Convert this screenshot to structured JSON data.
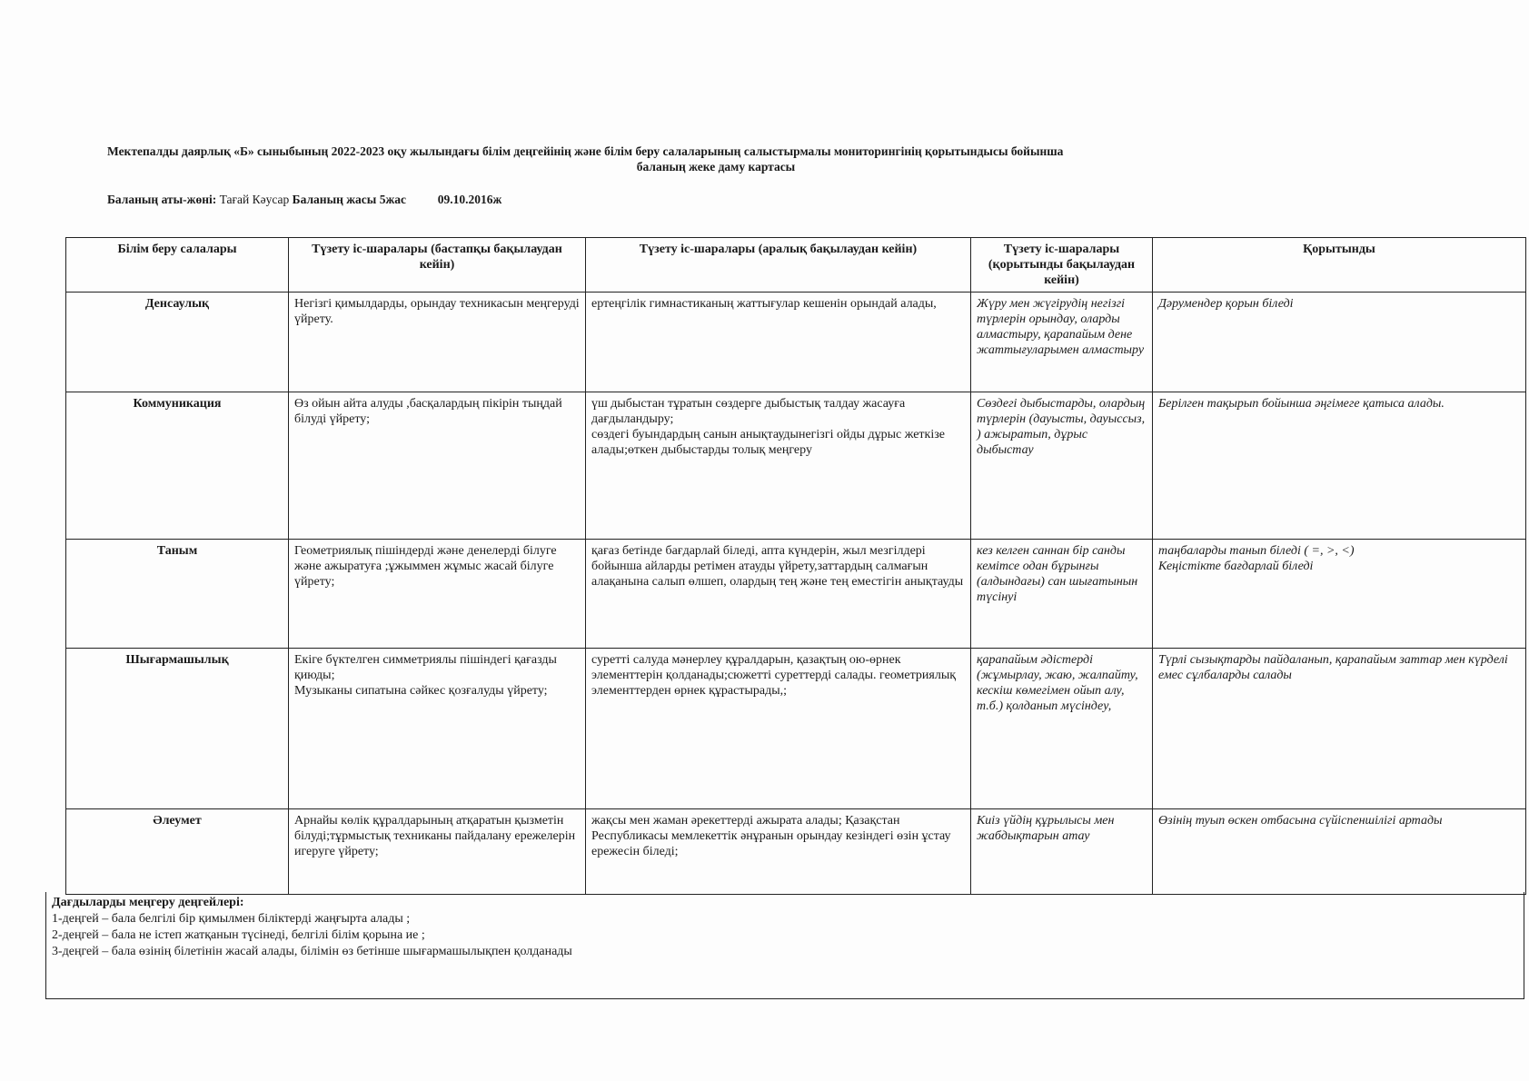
{
  "title": {
    "line1": "Мектепалды даярлық  «Б» сыныбының 2022-2023 оқу жылындағы білім деңгейінің  және білім беру салаларының салыстырмалы    мониторингінің қорытындысы бойынша",
    "line2": "баланың жеке даму картасы"
  },
  "child": {
    "name_label": "Баланың аты-жөні:",
    "name": "Тағай Кәусар",
    "age_label": "Баланың жасы",
    "age": "5жас",
    "birth_date": "09.10.2016ж"
  },
  "table": {
    "headers": [
      "Білім беру салалары",
      "Түзету іс-шаралары (бастапқы бақылаудан кейін)",
      "Түзету іс-шаралары (аралық бақылаудан кейін)",
      "Түзету іс-шаралары (қорытынды бақылаудан кейін)",
      "Қорытынды"
    ],
    "rows": [
      {
        "area": "Денсаулық",
        "initial": "Негізгі қимылдарды, орындау техникасын меңгеруді үйрету.",
        "interim": "ертеңгілік гимнастиканың жаттығулар кешенін орындай алады,",
        "final": "Жүру мен жүгірудің негізгі түрлерін орындау, оларды алмастыру, қарапайым дене жаттығуларымен алмастыру",
        "result": "Дәрумендер қорын біледі"
      },
      {
        "area": "Коммуникация",
        "initial": "Өз ойын айта алуды ,басқалардың пікірін тыңдай білуді үйрету;",
        "interim": "үш дыбыстан тұратын сөздерге дыбыстық талдау жасауға дағдыландыру;\nсөздегі буындардың санын анықтаудынегізгі ойды дұрыс жеткізе алады;өткен дыбыстарды толық меңгеру",
        "final": "Сөздегі дыбыстарды, олардың түрлерін (дауысты, дауыссыз, ) ажыратып, дұрыс дыбыстау",
        "result": "Берілген тақырып бойынша әңгімеге қатыса алады."
      },
      {
        "area": "Таным",
        "initial": "Геометриялық пішіндерді және денелерді білуге және ажыратуға ;ұжыммен жұмыс жасай білуге үйрету;",
        "interim": "қағаз бетінде бағдарлай біледі, апта күндерін, жыл мезгілдері бойынша айларды ретімен атауды үйрету,заттардың салмағын алақанына салып өлшеп, олардың тең және тең еместігін анықтауды",
        "final": "кез келген саннан бір санды кемітсе одан бұрынғы (алдындағы) сан шығатынын түсінуі",
        "result": "таңбаларды танып біледі ( =, >, <)\nКеңістікте бағдарлай біледі"
      },
      {
        "area": "Шығармашылық",
        "initial": "Екіге бүктелген симметриялы пішіндегі қағазды қиюды;\nМузыканы сипатына сәйкес қозғалуды үйрету;",
        "interim": "суретті салуда мәнерлеу құралдарын, қазақтың ою-өрнек элементтерін қолданады;сюжетті суреттерді салады. геометриялық элементтерден өрнек құрастырады,;",
        "final": "қарапайым әдістерді (жұмырлау, жаю, жалпайту, кескіш көмегімен ойып алу, т.б.) қолданып мүсіндеу,",
        "result": "Түрлі сызықтарды пайдаланып, қарапайым заттар мен күрделі емес сұлбаларды салады"
      },
      {
        "area": "Әлеумет",
        "initial": "Арнайы көлік құралдарының атқаратын қызметін білуді;тұрмыстық техниканы пайдалану ережелерін игеруге үйрету;",
        "interim": "жақсы мен жаман әрекеттерді ажырата алады; Қазақстан Республикасы мемлекеттік әнұранын орындау кезіндегі өзін ұстау    ережесін біледі;",
        "final": "Киіз үйдің құрылысы мен жабдықтарын атау",
        "result": "Өзінің туып өскен отбасына сүйіспеншілігі артады"
      }
    ]
  },
  "footer": {
    "heading": "Дағдыларды меңгеру деңгейлері:",
    "levels": [
      "1-деңгей – бала белгілі бір қимылмен біліктерді жаңғырта алады ;",
      "2-деңгей – бала не істеп жатқанын түсінеді, белгілі білім қорына ие ;",
      "3-деңгей – бала өзінің білетінін жасай алады, білімін өз бетінше шығармашылықпен қолданады"
    ]
  }
}
